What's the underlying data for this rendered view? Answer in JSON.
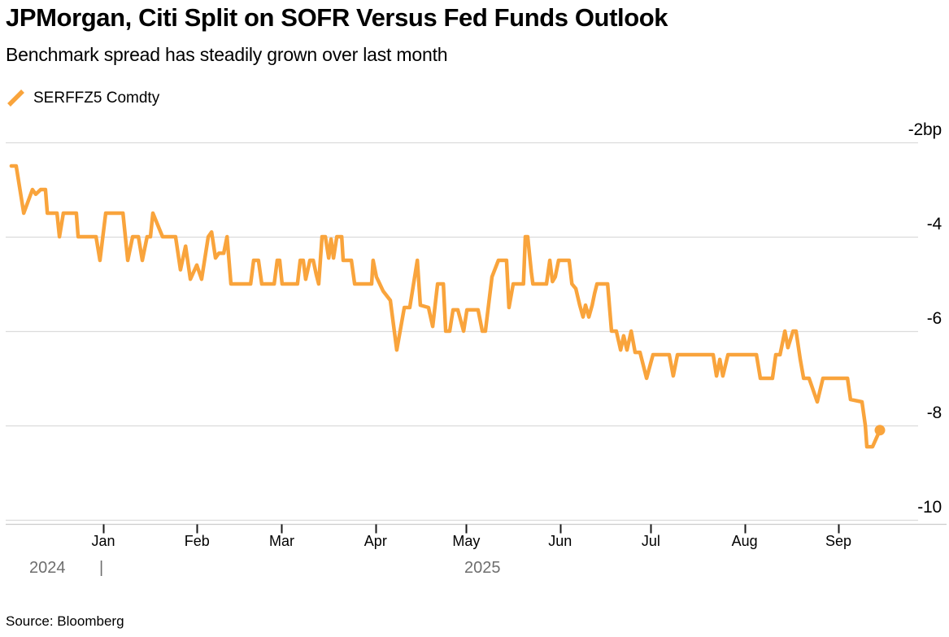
{
  "header": {
    "title": "JPMorgan, Citi Split on SOFR Versus Fed Funds Outlook",
    "subtitle": "Benchmark spread has steadily grown over last month"
  },
  "footer": {
    "source": "Source: Bloomberg"
  },
  "colors": {
    "line": "#F9A43C",
    "grid": "#DCDCDC",
    "axis_line": "#CCCCCC",
    "tick": "#1A1A1A",
    "text": "#000000",
    "year_text": "#6E6E6E",
    "background": "#FFFFFF"
  },
  "chart_data": {
    "type": "line",
    "title": "JPMorgan, Citi Split on SOFR Versus Fed Funds Outlook",
    "subtitle": "Benchmark spread has steadily grown over last month",
    "grid": "horizontal",
    "legend_position": "top-left",
    "y_axis": {
      "side": "right",
      "unit": "bp",
      "tick_values": [
        -2,
        -4,
        -6,
        -8,
        -10
      ],
      "tick_labels": [
        "-2bp",
        "-4",
        "-6",
        "-8",
        "-10"
      ],
      "range": [
        -10.8,
        -1.4
      ]
    },
    "x_axis": {
      "unit": "days_since_2025-01-01",
      "tick_labels": [
        "Jan",
        "Feb",
        "Mar",
        "Apr",
        "May",
        "Jun",
        "Jul",
        "Aug",
        "Sep"
      ],
      "tick_days": [
        0,
        31,
        59,
        90,
        120,
        151,
        181,
        212,
        243
      ],
      "year_left": "2024",
      "year_divider": "|",
      "year_right": "2025",
      "range_days": [
        -31,
        262
      ]
    },
    "series": [
      {
        "name": "SERFFZ5 Comdty",
        "color": "#F9A43C",
        "end_marker": true,
        "last_value": -8.1,
        "points": [
          [
            -30.4,
            -2.5
          ],
          [
            -28.8,
            -2.5
          ],
          [
            -26.3,
            -3.5
          ],
          [
            -23.4,
            -3.0
          ],
          [
            -22.3,
            -3.1
          ],
          [
            -20.7,
            -3.0
          ],
          [
            -19.1,
            -3.0
          ],
          [
            -18.5,
            -3.5
          ],
          [
            -15.3,
            -3.5
          ],
          [
            -14.5,
            -4.0
          ],
          [
            -13.2,
            -3.5
          ],
          [
            -8.9,
            -3.5
          ],
          [
            -8.3,
            -4.0
          ],
          [
            -2.4,
            -4.0
          ],
          [
            -1.1,
            -4.5
          ],
          [
            0.8,
            -3.5
          ],
          [
            6.5,
            -3.5
          ],
          [
            8.1,
            -4.5
          ],
          [
            9.7,
            -4.0
          ],
          [
            11.6,
            -4.0
          ],
          [
            12.9,
            -4.5
          ],
          [
            14.5,
            -4.0
          ],
          [
            15.6,
            -4.0
          ],
          [
            16.4,
            -3.5
          ],
          [
            19.6,
            -4.0
          ],
          [
            23.9,
            -4.0
          ],
          [
            25.5,
            -4.7
          ],
          [
            27.2,
            -4.2
          ],
          [
            28.8,
            -4.9
          ],
          [
            30.9,
            -4.6
          ],
          [
            32.5,
            -4.9
          ],
          [
            34.7,
            -4.0
          ],
          [
            35.8,
            -3.9
          ],
          [
            37.1,
            -4.45
          ],
          [
            38.2,
            -4.35
          ],
          [
            39.8,
            -4.35
          ],
          [
            40.9,
            -4.0
          ],
          [
            42.2,
            -5.0
          ],
          [
            48.7,
            -5.0
          ],
          [
            49.7,
            -4.5
          ],
          [
            51.3,
            -4.5
          ],
          [
            52.4,
            -5.0
          ],
          [
            56.5,
            -5.0
          ],
          [
            57.5,
            -4.5
          ],
          [
            58.3,
            -4.5
          ],
          [
            59.1,
            -5.0
          ],
          [
            64.2,
            -5.0
          ],
          [
            65.1,
            -4.5
          ],
          [
            66.1,
            -4.5
          ],
          [
            66.9,
            -4.9
          ],
          [
            68.3,
            -4.5
          ],
          [
            69.4,
            -4.5
          ],
          [
            70.4,
            -4.8
          ],
          [
            71.2,
            -5.0
          ],
          [
            72.3,
            -4.0
          ],
          [
            73.4,
            -4.0
          ],
          [
            74.5,
            -4.45
          ],
          [
            75.3,
            -4.05
          ],
          [
            76.1,
            -4.45
          ],
          [
            77.2,
            -4.0
          ],
          [
            78.8,
            -4.0
          ],
          [
            79.3,
            -4.5
          ],
          [
            82.0,
            -4.5
          ],
          [
            83.1,
            -5.0
          ],
          [
            88.7,
            -5.0
          ],
          [
            89.2,
            -4.5
          ],
          [
            90.3,
            -4.85
          ],
          [
            91.4,
            -5.0
          ],
          [
            92.5,
            -5.15
          ],
          [
            94.9,
            -5.35
          ],
          [
            97.0,
            -6.4
          ],
          [
            99.5,
            -5.5
          ],
          [
            101.3,
            -5.5
          ],
          [
            103.8,
            -4.5
          ],
          [
            104.8,
            -5.45
          ],
          [
            107.5,
            -5.5
          ],
          [
            108.9,
            -5.9
          ],
          [
            110.5,
            -5.0
          ],
          [
            112.4,
            -5.0
          ],
          [
            113.2,
            -6.0
          ],
          [
            114.5,
            -6.0
          ],
          [
            115.6,
            -5.55
          ],
          [
            117.2,
            -5.55
          ],
          [
            119.1,
            -6.0
          ],
          [
            120.2,
            -5.55
          ],
          [
            123.9,
            -5.55
          ],
          [
            125.3,
            -6.0
          ],
          [
            126.3,
            -6.0
          ],
          [
            128.5,
            -4.85
          ],
          [
            130.6,
            -4.5
          ],
          [
            133.3,
            -4.5
          ],
          [
            134.1,
            -5.5
          ],
          [
            135.5,
            -5.0
          ],
          [
            138.9,
            -5.0
          ],
          [
            139.5,
            -4.0
          ],
          [
            140.3,
            -4.0
          ],
          [
            141.5,
            -4.75
          ],
          [
            142.0,
            -5.0
          ],
          [
            146.5,
            -5.0
          ],
          [
            147.6,
            -4.5
          ],
          [
            148.5,
            -4.95
          ],
          [
            149.4,
            -4.85
          ],
          [
            150.5,
            -4.5
          ],
          [
            154.0,
            -4.5
          ],
          [
            154.9,
            -5.0
          ],
          [
            156.2,
            -5.1
          ],
          [
            157.5,
            -5.45
          ],
          [
            158.6,
            -5.7
          ],
          [
            159.4,
            -5.45
          ],
          [
            160.5,
            -5.7
          ],
          [
            161.6,
            -5.45
          ],
          [
            162.4,
            -5.2
          ],
          [
            163.2,
            -5.0
          ],
          [
            166.7,
            -5.0
          ],
          [
            168.0,
            -6.0
          ],
          [
            169.6,
            -6.0
          ],
          [
            171.0,
            -6.4
          ],
          [
            172.0,
            -6.1
          ],
          [
            173.1,
            -6.4
          ],
          [
            174.5,
            -6.0
          ],
          [
            175.8,
            -6.45
          ],
          [
            177.4,
            -6.45
          ],
          [
            178.8,
            -6.8
          ],
          [
            179.6,
            -7.0
          ],
          [
            181.7,
            -6.5
          ],
          [
            187.1,
            -6.5
          ],
          [
            188.4,
            -6.95
          ],
          [
            189.8,
            -6.5
          ],
          [
            201.6,
            -6.5
          ],
          [
            202.7,
            -6.95
          ],
          [
            203.8,
            -6.6
          ],
          [
            204.8,
            -6.95
          ],
          [
            206.5,
            -6.5
          ],
          [
            215.9,
            -6.5
          ],
          [
            217.2,
            -7.0
          ],
          [
            221.2,
            -7.0
          ],
          [
            222.3,
            -6.5
          ],
          [
            223.7,
            -6.5
          ],
          [
            225.3,
            -6.0
          ],
          [
            226.3,
            -6.35
          ],
          [
            228.0,
            -6.0
          ],
          [
            229.0,
            -6.0
          ],
          [
            230.4,
            -6.6
          ],
          [
            231.5,
            -7.0
          ],
          [
            233.3,
            -7.0
          ],
          [
            236.0,
            -7.5
          ],
          [
            237.9,
            -7.0
          ],
          [
            246.0,
            -7.0
          ],
          [
            247.0,
            -7.45
          ],
          [
            250.8,
            -7.5
          ],
          [
            251.9,
            -8.0
          ],
          [
            252.4,
            -8.45
          ],
          [
            254.3,
            -8.45
          ],
          [
            256.7,
            -8.1
          ]
        ]
      }
    ]
  }
}
